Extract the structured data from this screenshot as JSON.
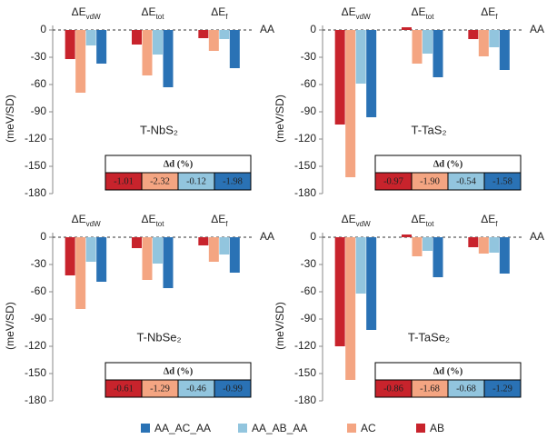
{
  "chart_data": [
    {
      "type": "bar",
      "title": "T-NbS₂",
      "y_label": "(meV/SD)",
      "reference_label": "AA",
      "categories": [
        {
          "text": "ΔE",
          "sub": "vdW"
        },
        {
          "text": "ΔE",
          "sub": "tot"
        },
        {
          "text": "ΔE",
          "sub": "f"
        }
      ],
      "series": [
        {
          "name": "AB",
          "color": "#c8232c",
          "values": [
            -32,
            -16,
            -9
          ]
        },
        {
          "name": "AC",
          "color": "#f4a582",
          "values": [
            -69,
            -50,
            -23
          ]
        },
        {
          "name": "AA_AB_AA",
          "color": "#92c5de",
          "values": [
            -17,
            -27,
            -10
          ]
        },
        {
          "name": "AA_AC_AA",
          "color": "#2a72b5",
          "values": [
            -37,
            -63,
            -42
          ]
        }
      ],
      "ylim": [
        -180,
        5
      ],
      "yticks": [
        0,
        -30,
        -60,
        -90,
        -120,
        -150,
        -180
      ],
      "table": {
        "header": "Δd (%)",
        "values": [
          -1.01,
          -2.32,
          -0.12,
          -1.98
        ],
        "value_labels": [
          "-1.01",
          "-2.32",
          "-0.12",
          "-1.98"
        ]
      }
    },
    {
      "type": "bar",
      "title": "T-TaS₂",
      "y_label": "(meV/SD)",
      "reference_label": "AA",
      "categories": [
        {
          "text": "ΔE",
          "sub": "vdW"
        },
        {
          "text": "ΔE",
          "sub": "tot"
        },
        {
          "text": "ΔE",
          "sub": "f"
        }
      ],
      "series": [
        {
          "name": "AB",
          "color": "#c8232c",
          "values": [
            -104,
            3,
            -10
          ]
        },
        {
          "name": "AC",
          "color": "#f4a582",
          "values": [
            -162,
            -37,
            -29
          ]
        },
        {
          "name": "AA_AB_AA",
          "color": "#92c5de",
          "values": [
            -59,
            -26,
            -19
          ]
        },
        {
          "name": "AA_AC_AA",
          "color": "#2a72b5",
          "values": [
            -96,
            -52,
            -44
          ]
        }
      ],
      "ylim": [
        -180,
        5
      ],
      "yticks": [
        0,
        -30,
        -60,
        -90,
        -120,
        -150,
        -180
      ],
      "table": {
        "header": "Δd (%)",
        "values": [
          -0.97,
          -1.9,
          -0.54,
          -1.58
        ],
        "value_labels": [
          "-0.97",
          "-1.90",
          "-0.54",
          "-1.58"
        ]
      }
    },
    {
      "type": "bar",
      "title": "T-NbSe₂",
      "y_label": "(meV/SD)",
      "reference_label": "AA",
      "categories": [
        {
          "text": "ΔE",
          "sub": "vdW"
        },
        {
          "text": "ΔE",
          "sub": "tot"
        },
        {
          "text": "ΔE",
          "sub": "f"
        }
      ],
      "series": [
        {
          "name": "AB",
          "color": "#c8232c",
          "values": [
            -42,
            -12,
            -9
          ]
        },
        {
          "name": "AC",
          "color": "#f4a582",
          "values": [
            -79,
            -47,
            -27
          ]
        },
        {
          "name": "AA_AB_AA",
          "color": "#92c5de",
          "values": [
            -27,
            -29,
            -19
          ]
        },
        {
          "name": "AA_AC_AA",
          "color": "#2a72b5",
          "values": [
            -49,
            -56,
            -39
          ]
        }
      ],
      "ylim": [
        -180,
        5
      ],
      "yticks": [
        0,
        -30,
        -60,
        -90,
        -120,
        -150,
        -180
      ],
      "table": {
        "header": "Δd (%)",
        "values": [
          -0.61,
          -1.29,
          -0.46,
          -0.99
        ],
        "value_labels": [
          "-0.61",
          "-1.29",
          "-0.46",
          "-0.99"
        ]
      }
    },
    {
      "type": "bar",
      "title": "T-TaSe₂",
      "y_label": "(meV/SD)",
      "reference_label": "AA",
      "categories": [
        {
          "text": "ΔE",
          "sub": "vdW"
        },
        {
          "text": "ΔE",
          "sub": "tot"
        },
        {
          "text": "ΔE",
          "sub": "f"
        }
      ],
      "series": [
        {
          "name": "AB",
          "color": "#c8232c",
          "values": [
            -120,
            3,
            -11
          ]
        },
        {
          "name": "AC",
          "color": "#f4a582",
          "values": [
            -157,
            -21,
            -18
          ]
        },
        {
          "name": "AA_AB_AA",
          "color": "#92c5de",
          "values": [
            -62,
            -15,
            -17
          ]
        },
        {
          "name": "AA_AC_AA",
          "color": "#2a72b5",
          "values": [
            -102,
            -44,
            -40
          ]
        }
      ],
      "ylim": [
        -180,
        5
      ],
      "yticks": [
        0,
        -30,
        -60,
        -90,
        -120,
        -150,
        -180
      ],
      "table": {
        "header": "Δd (%)",
        "values": [
          -0.86,
          -1.68,
          -0.68,
          -1.29
        ],
        "value_labels": [
          "-0.86",
          "-1.68",
          "-0.68",
          "-1.29"
        ]
      }
    }
  ]
}
